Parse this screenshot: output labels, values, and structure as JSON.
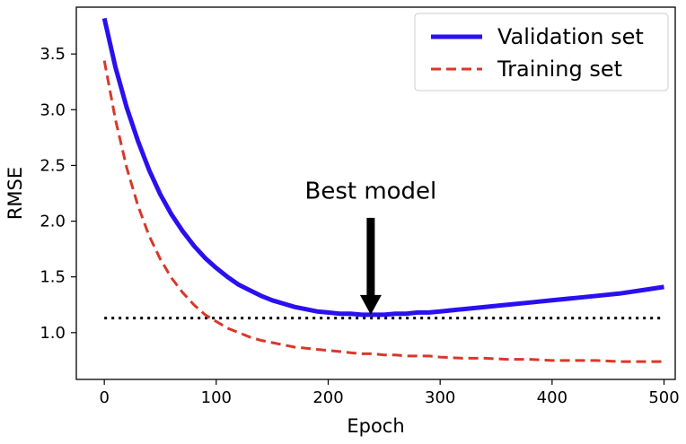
{
  "chart_data": {
    "type": "line",
    "title": "",
    "xlabel": "Epoch",
    "ylabel": "RMSE",
    "xlim": [
      -25,
      510
    ],
    "ylim": [
      0.58,
      3.92
    ],
    "xticks": [
      0,
      100,
      200,
      300,
      400,
      500
    ],
    "yticks": [
      1.0,
      1.5,
      2.0,
      2.5,
      3.0,
      3.5
    ],
    "xtick_labels": [
      "0",
      "100",
      "200",
      "300",
      "400",
      "500"
    ],
    "ytick_labels": [
      "1.0",
      "1.5",
      "2.0",
      "2.5",
      "3.0",
      "3.5"
    ],
    "grid": false,
    "legend_position": "top-right",
    "x": [
      0,
      10,
      20,
      30,
      40,
      50,
      60,
      70,
      80,
      90,
      100,
      110,
      120,
      130,
      140,
      150,
      160,
      170,
      180,
      190,
      200,
      210,
      220,
      230,
      240,
      250,
      260,
      270,
      280,
      290,
      300,
      320,
      340,
      360,
      380,
      400,
      420,
      440,
      460,
      480,
      500
    ],
    "series": [
      {
        "name": "Validation set",
        "style": "solid",
        "color": "#2a10f0",
        "values": [
          3.82,
          3.38,
          3.02,
          2.72,
          2.46,
          2.24,
          2.06,
          1.91,
          1.78,
          1.67,
          1.58,
          1.5,
          1.43,
          1.38,
          1.33,
          1.29,
          1.26,
          1.23,
          1.21,
          1.19,
          1.18,
          1.17,
          1.17,
          1.16,
          1.16,
          1.16,
          1.17,
          1.17,
          1.18,
          1.18,
          1.19,
          1.21,
          1.23,
          1.25,
          1.27,
          1.29,
          1.31,
          1.33,
          1.35,
          1.38,
          1.41
        ]
      },
      {
        "name": "Training set",
        "style": "dashed",
        "color": "#d9372b",
        "values": [
          3.44,
          2.91,
          2.48,
          2.14,
          1.87,
          1.66,
          1.49,
          1.36,
          1.25,
          1.16,
          1.1,
          1.04,
          1.0,
          0.96,
          0.93,
          0.91,
          0.89,
          0.87,
          0.86,
          0.85,
          0.84,
          0.83,
          0.82,
          0.81,
          0.81,
          0.8,
          0.8,
          0.79,
          0.79,
          0.79,
          0.78,
          0.77,
          0.77,
          0.76,
          0.76,
          0.75,
          0.75,
          0.75,
          0.74,
          0.74,
          0.74
        ]
      }
    ],
    "reference_line": {
      "style": "dotted",
      "color": "#000000",
      "y": 1.13,
      "x_start": 0,
      "x_end": 500
    },
    "annotation": {
      "text": "Best model",
      "arrow_tip_x": 238,
      "arrow_tip_y": 1.16,
      "arrow_tail_y": 2.03,
      "text_x": 238,
      "text_y": 2.2
    }
  }
}
